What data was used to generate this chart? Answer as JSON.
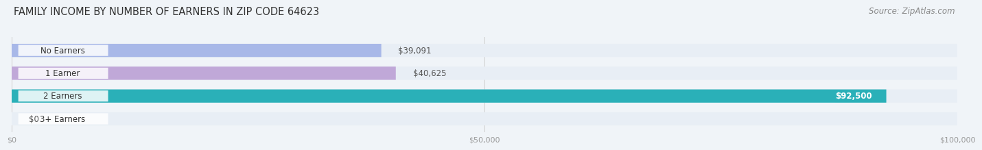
{
  "title": "FAMILY INCOME BY NUMBER OF EARNERS IN ZIP CODE 64623",
  "source": "Source: ZipAtlas.com",
  "categories": [
    "No Earners",
    "1 Earner",
    "2 Earners",
    "3+ Earners"
  ],
  "values": [
    39091,
    40625,
    92500,
    0
  ],
  "bar_colors": [
    "#a8b8e8",
    "#c0a8d8",
    "#2ab0b8",
    "#b8b8e8"
  ],
  "bar_bg_color": "#e8eef5",
  "value_labels": [
    "$39,091",
    "$40,625",
    "$92,500",
    "$0"
  ],
  "value_inside": [
    false,
    false,
    true,
    false
  ],
  "xlim": [
    0,
    100000
  ],
  "xticks": [
    0,
    50000,
    100000
  ],
  "xtick_labels": [
    "$0",
    "$50,000",
    "$100,000"
  ],
  "background_color": "#f0f4f8",
  "title_fontsize": 10.5,
  "source_fontsize": 8.5,
  "bar_label_fontsize": 8.5,
  "value_label_fontsize": 8.5
}
